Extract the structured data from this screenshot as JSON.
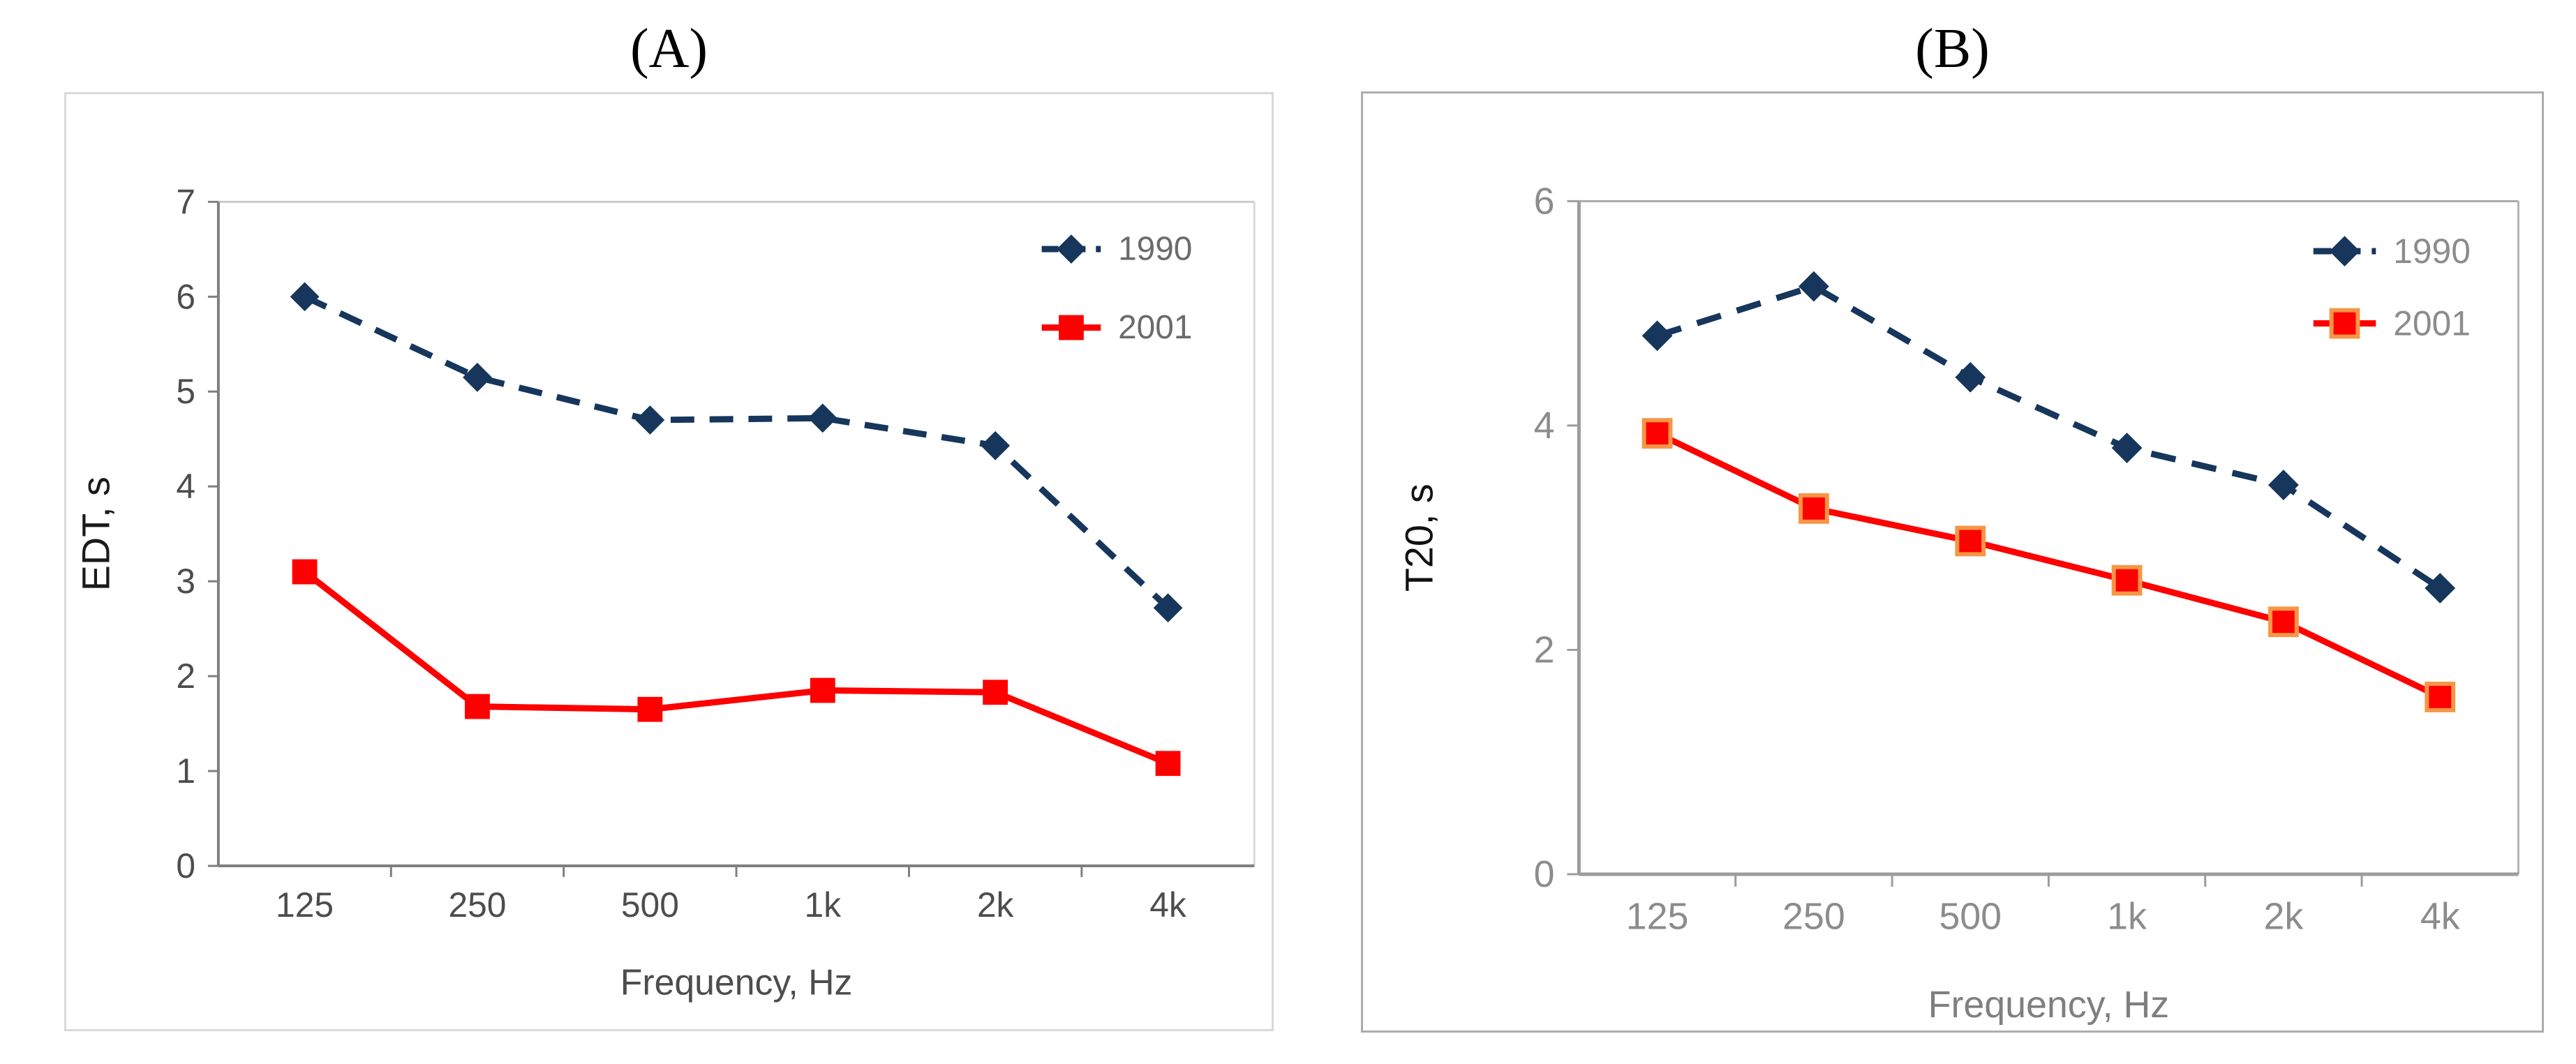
{
  "figure": {
    "background": "#ffffff",
    "description_texts": {
      "panel_a_title": "(A)",
      "panel_b_title": "(B)"
    }
  },
  "chart_data": [
    {
      "type": "line",
      "title": "(A)",
      "xlabel": "Frequency, Hz",
      "ylabel": "EDT, s",
      "categories": [
        "125",
        "250",
        "500",
        "1k",
        "2k",
        "4k"
      ],
      "ylim": [
        0,
        7
      ],
      "yticks": [
        0,
        1,
        2,
        3,
        4,
        5,
        6,
        7
      ],
      "grid": false,
      "legend_position": "top-right-inside",
      "series": [
        {
          "name": "1990",
          "values": [
            6.0,
            5.15,
            4.7,
            4.72,
            4.43,
            2.72
          ],
          "color": "#16365c",
          "line_style": "dashed",
          "marker": "diamond"
        },
        {
          "name": "2001",
          "values": [
            3.1,
            1.68,
            1.65,
            1.85,
            1.83,
            1.08
          ],
          "color": "#ff0000",
          "line_style": "solid",
          "marker": "square"
        }
      ],
      "colors": {
        "axis": "#7f7f7f",
        "frame": "#c9c9c9",
        "right_frame": "#d9d9d9",
        "tick_text": "#4d4d4d",
        "axis_title_y": "#1a1a1a",
        "axis_title_x": "#4d4d4d",
        "legend_text": "#6b6b6b",
        "panel_border": "#d9d9d9"
      }
    },
    {
      "type": "line",
      "title": "(B)",
      "xlabel": "Frequency, Hz",
      "ylabel": "T20, s",
      "categories": [
        "125",
        "250",
        "500",
        "1k",
        "2k",
        "4k"
      ],
      "ylim": [
        0,
        6
      ],
      "yticks": [
        0,
        2,
        4,
        6
      ],
      "grid": false,
      "legend_position": "top-right-inside",
      "series": [
        {
          "name": "1990",
          "values": [
            4.8,
            5.24,
            4.43,
            3.8,
            3.47,
            2.55
          ],
          "color": "#16365c",
          "line_style": "dashed",
          "marker": "diamond"
        },
        {
          "name": "2001",
          "values": [
            3.93,
            3.26,
            2.97,
            2.62,
            2.25,
            1.58
          ],
          "color": "#ff0000",
          "line_style": "solid",
          "marker": "square",
          "marker_border": "#f79646"
        }
      ],
      "colors": {
        "axis": "#9c9c9c",
        "frame": "#a6a6a6",
        "right_frame": "#b3b3b3",
        "tick_text": "#8c8c8c",
        "axis_title_y": "#111111",
        "axis_title_x": "#7f7f7f",
        "legend_text": "#8c8c8c",
        "panel_border": "#b0abab"
      }
    }
  ]
}
